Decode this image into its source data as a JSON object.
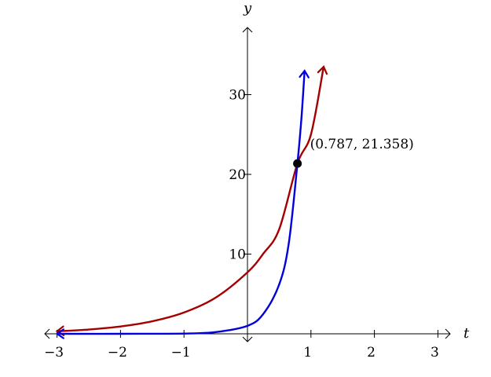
{
  "chart_data": {
    "type": "line",
    "xlabel": "t",
    "ylabel": "y",
    "xlim": [
      -3,
      3
    ],
    "ylim": [
      0,
      38
    ],
    "x_ticks": [
      {
        "value": -3,
        "label": "−3"
      },
      {
        "value": -2,
        "label": "−2"
      },
      {
        "value": -1,
        "label": "−1"
      },
      {
        "value": 1,
        "label": "1"
      },
      {
        "value": 2,
        "label": "2"
      },
      {
        "value": 3,
        "label": "3"
      }
    ],
    "y_ticks": [
      {
        "value": 10,
        "label": "10"
      },
      {
        "value": 20,
        "label": "20"
      },
      {
        "value": 30,
        "label": "30"
      }
    ],
    "grid": false,
    "series": [
      {
        "color": "#a50000",
        "x": [
          -3.0,
          -2.5,
          -2.0,
          -1.5,
          -1.0,
          -0.5,
          0.0,
          0.25,
          0.5,
          0.787,
          1.0,
          1.2
        ],
        "y": [
          0.32,
          0.54,
          0.92,
          1.57,
          2.67,
          4.54,
          7.71,
          10.06,
          13.12,
          21.36,
          25.0,
          33.5
        ]
      },
      {
        "color": "#0000dd",
        "x": [
          -3.0,
          -2.0,
          -1.0,
          -0.5,
          0.0,
          0.25,
          0.5,
          0.65,
          0.787,
          0.85,
          0.9
        ],
        "y": [
          0.0,
          0.0,
          0.03,
          0.22,
          1.0,
          2.5,
          6.2,
          11.3,
          21.36,
          27.0,
          33.0
        ]
      }
    ],
    "point": {
      "x": 0.787,
      "y": 21.358,
      "label": "(0.787, 21.358)"
    }
  }
}
